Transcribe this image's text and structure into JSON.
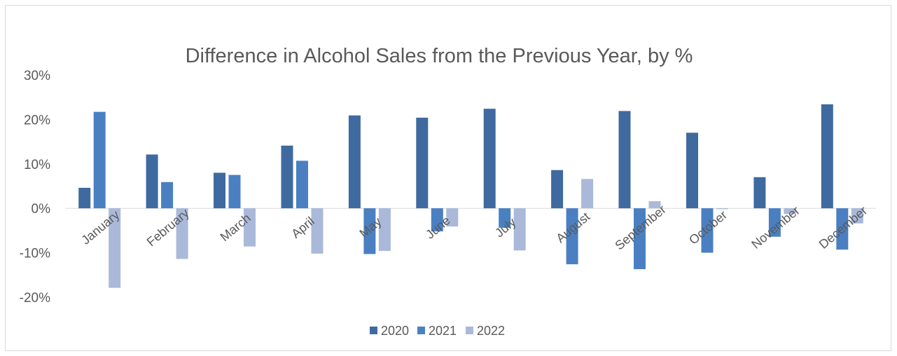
{
  "chart_data": {
    "type": "bar",
    "title": "Difference in Alcohol Sales from the Previous Year, by  %",
    "xlabel": "",
    "ylabel": "",
    "ylim": [
      -0.2,
      0.3
    ],
    "yticks": [
      0.3,
      0.2,
      0.1,
      0,
      -0.1,
      -0.2
    ],
    "ytick_labels": [
      "30%",
      "20%",
      "10%",
      "0%",
      "-10%",
      "-20%"
    ],
    "grid": false,
    "legend_position": "bottom",
    "categories": [
      "January",
      "February",
      "March",
      "April",
      "May",
      "June",
      "July",
      "August",
      "September",
      "October",
      "November",
      "December"
    ],
    "series": [
      {
        "name": "2020",
        "color": "#3f6aa0",
        "values": [
          0.046,
          0.121,
          0.08,
          0.141,
          0.209,
          0.204,
          0.224,
          0.086,
          0.219,
          0.17,
          0.07,
          0.234
        ]
      },
      {
        "name": "2021",
        "color": "#4a80c2",
        "values": [
          0.217,
          0.059,
          0.075,
          0.107,
          -0.103,
          -0.052,
          -0.044,
          -0.126,
          -0.137,
          -0.1,
          -0.064,
          -0.093
        ]
      },
      {
        "name": "2022",
        "color": "#aab9d9",
        "values": [
          -0.179,
          -0.114,
          -0.086,
          -0.102,
          -0.096,
          -0.041,
          -0.095,
          0.066,
          0.016,
          -0.002,
          -0.013,
          -0.034
        ]
      }
    ]
  }
}
